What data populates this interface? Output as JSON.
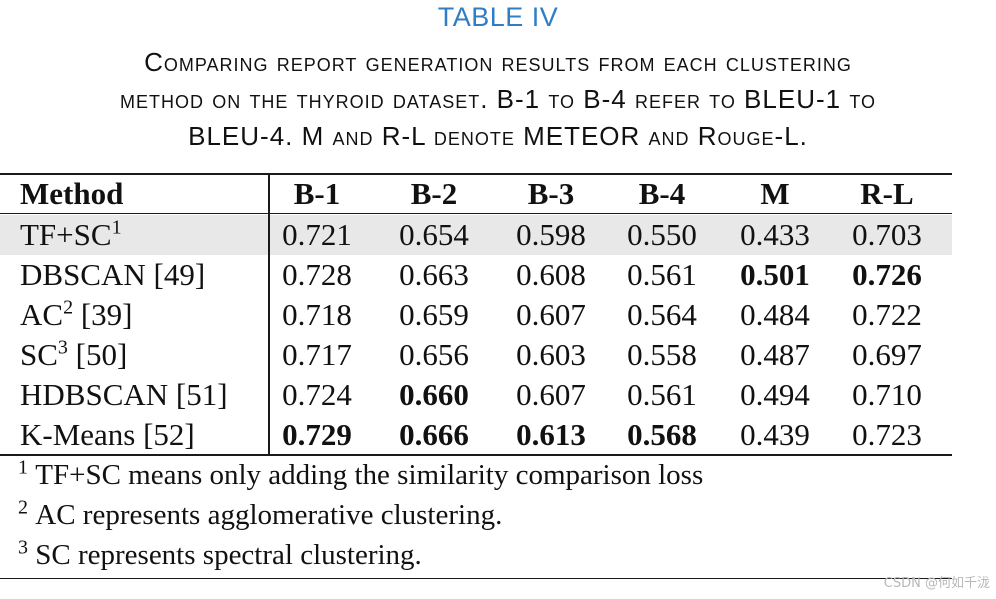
{
  "table_label": "TABLE IV",
  "caption_lines": [
    "Comparing report generation results from each clustering",
    "method on the thyroid dataset. B-1 to B-4 refer to BLEU-1 to",
    "BLEU-4. M and R-L denote METEOR and Rouge-L."
  ],
  "headers": [
    "Method",
    "B-1",
    "B-2",
    "B-3",
    "B-4",
    "M",
    "R-L"
  ],
  "rows": [
    {
      "method": "TF+SC",
      "sup": "1",
      "ref": "",
      "values": [
        "0.721",
        "0.654",
        "0.598",
        "0.550",
        "0.433",
        "0.703"
      ],
      "bold": [
        false,
        false,
        false,
        false,
        false,
        false
      ],
      "highlight": true
    },
    {
      "method": "DBSCAN",
      "sup": "",
      "ref": "[49]",
      "values": [
        "0.728",
        "0.663",
        "0.608",
        "0.561",
        "0.501",
        "0.726"
      ],
      "bold": [
        false,
        false,
        false,
        false,
        true,
        true
      ],
      "highlight": false
    },
    {
      "method": "AC",
      "sup": "2",
      "ref": "[39]",
      "values": [
        "0.718",
        "0.659",
        "0.607",
        "0.564",
        "0.484",
        "0.722"
      ],
      "bold": [
        false,
        false,
        false,
        false,
        false,
        false
      ],
      "highlight": false
    },
    {
      "method": "SC",
      "sup": "3",
      "ref": "[50]",
      "values": [
        "0.717",
        "0.656",
        "0.603",
        "0.558",
        "0.487",
        "0.697"
      ],
      "bold": [
        false,
        false,
        false,
        false,
        false,
        false
      ],
      "highlight": false
    },
    {
      "method": "HDBSCAN",
      "sup": "",
      "ref": "[51]",
      "values": [
        "0.724",
        "0.660",
        "0.607",
        "0.561",
        "0.494",
        "0.710"
      ],
      "bold": [
        false,
        true,
        false,
        false,
        false,
        false
      ],
      "highlight": false
    },
    {
      "method": "K-Means",
      "sup": "",
      "ref": "[52]",
      "values": [
        "0.729",
        "0.666",
        "0.613",
        "0.568",
        "0.439",
        "0.723"
      ],
      "bold": [
        true,
        true,
        true,
        true,
        false,
        false
      ],
      "highlight": false
    }
  ],
  "footnotes": [
    {
      "mark": "1",
      "text": "TF+SC means only adding the similarity comparison loss"
    },
    {
      "mark": "2",
      "text": "AC represents agglomerative clustering."
    },
    {
      "mark": "3",
      "text": "SC represents spectral clustering."
    }
  ],
  "watermark": "CSDN @何如千泷"
}
